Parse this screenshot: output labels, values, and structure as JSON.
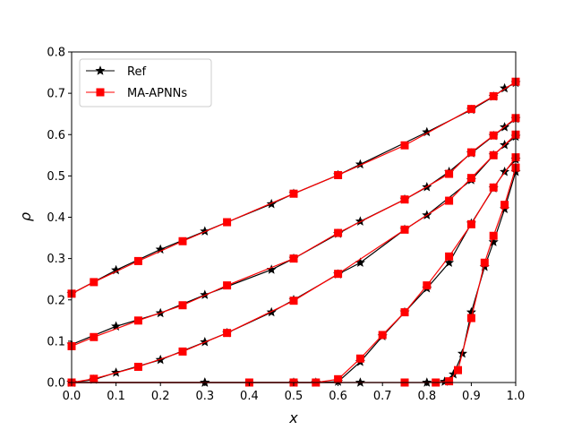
{
  "chart_data": {
    "type": "line",
    "xlabel": "x",
    "ylabel": "ρ",
    "xlim": [
      0.0,
      1.0
    ],
    "ylim": [
      0.0,
      0.8
    ],
    "xticks": [
      "0.0",
      "0.1",
      "0.2",
      "0.3",
      "0.4",
      "0.5",
      "0.6",
      "0.7",
      "0.8",
      "0.9",
      "1.0"
    ],
    "yticks": [
      "0.0",
      "0.1",
      "0.2",
      "0.3",
      "0.4",
      "0.5",
      "0.6",
      "0.7",
      "0.8"
    ],
    "grid": false,
    "legend_position": "top-left",
    "series": [
      {
        "name": "Ref",
        "color": "#000000",
        "marker": "star",
        "curves": [
          {
            "x": [
              0.0,
              0.1,
              0.2,
              0.3,
              0.45,
              0.5,
              0.6,
              0.65,
              0.8,
              0.9,
              0.95,
              0.975,
              1.0
            ],
            "y": [
              0.215,
              0.272,
              0.322,
              0.366,
              0.432,
              0.457,
              0.502,
              0.528,
              0.606,
              0.66,
              0.692,
              0.712,
              0.725
            ]
          },
          {
            "x": [
              0.0,
              0.1,
              0.2,
              0.3,
              0.45,
              0.5,
              0.6,
              0.65,
              0.75,
              0.8,
              0.85,
              0.9,
              0.95,
              0.975,
              1.0
            ],
            "y": [
              0.092,
              0.136,
              0.168,
              0.212,
              0.273,
              0.3,
              0.36,
              0.39,
              0.443,
              0.473,
              0.51,
              0.555,
              0.597,
              0.618,
              0.638
            ]
          },
          {
            "x": [
              0.0,
              0.05,
              0.1,
              0.2,
              0.3,
              0.35,
              0.45,
              0.5,
              0.6,
              0.65,
              0.75,
              0.8,
              0.9,
              0.95,
              0.975,
              1.0
            ],
            "y": [
              0.0,
              0.007,
              0.024,
              0.055,
              0.098,
              0.12,
              0.17,
              0.2,
              0.262,
              0.29,
              0.37,
              0.405,
              0.49,
              0.55,
              0.575,
              0.595
            ]
          },
          {
            "x": [
              0.0,
              0.3,
              0.55,
              0.6,
              0.65,
              0.7,
              0.75,
              0.8,
              0.85,
              0.9,
              0.95,
              0.975,
              1.0
            ],
            "y": [
              0.0,
              0.0,
              0.0,
              0.002,
              0.05,
              0.112,
              0.17,
              0.228,
              0.29,
              0.385,
              0.47,
              0.51,
              0.54
            ]
          },
          {
            "x": [
              0.0,
              0.3,
              0.5,
              0.65,
              0.8,
              0.84,
              0.86,
              0.88,
              0.9,
              0.93,
              0.95,
              0.975,
              1.0
            ],
            "y": [
              0.0,
              0.0,
              0.0,
              0.0,
              0.0,
              0.002,
              0.02,
              0.07,
              0.17,
              0.28,
              0.34,
              0.42,
              0.51
            ]
          }
        ]
      },
      {
        "name": "MA-APNNs",
        "color": "#ff0000",
        "marker": "square",
        "curves": [
          {
            "x": [
              0.0,
              0.05,
              0.15,
              0.25,
              0.35,
              0.5,
              0.6,
              0.75,
              0.9,
              0.95,
              1.0
            ],
            "y": [
              0.215,
              0.243,
              0.294,
              0.342,
              0.388,
              0.457,
              0.502,
              0.574,
              0.662,
              0.693,
              0.728
            ]
          },
          {
            "x": [
              0.0,
              0.05,
              0.15,
              0.25,
              0.35,
              0.5,
              0.6,
              0.75,
              0.85,
              0.9,
              0.95,
              1.0
            ],
            "y": [
              0.088,
              0.11,
              0.15,
              0.187,
              0.235,
              0.3,
              0.362,
              0.443,
              0.505,
              0.557,
              0.598,
              0.64
            ]
          },
          {
            "x": [
              0.0,
              0.05,
              0.15,
              0.25,
              0.35,
              0.5,
              0.6,
              0.75,
              0.85,
              0.9,
              0.95,
              1.0
            ],
            "y": [
              0.0,
              0.009,
              0.038,
              0.075,
              0.12,
              0.198,
              0.263,
              0.37,
              0.44,
              0.495,
              0.55,
              0.6
            ]
          },
          {
            "x": [
              0.0,
              0.4,
              0.55,
              0.6,
              0.65,
              0.7,
              0.75,
              0.8,
              0.85,
              0.9,
              0.95,
              1.0
            ],
            "y": [
              0.0,
              0.0,
              0.0,
              0.008,
              0.058,
              0.115,
              0.17,
              0.235,
              0.305,
              0.383,
              0.472,
              0.545
            ]
          },
          {
            "x": [
              0.0,
              0.5,
              0.75,
              0.82,
              0.85,
              0.87,
              0.9,
              0.93,
              0.95,
              0.975,
              1.0
            ],
            "y": [
              0.0,
              0.0,
              0.0,
              0.0,
              0.003,
              0.03,
              0.156,
              0.29,
              0.355,
              0.43,
              0.52
            ]
          }
        ]
      }
    ]
  }
}
